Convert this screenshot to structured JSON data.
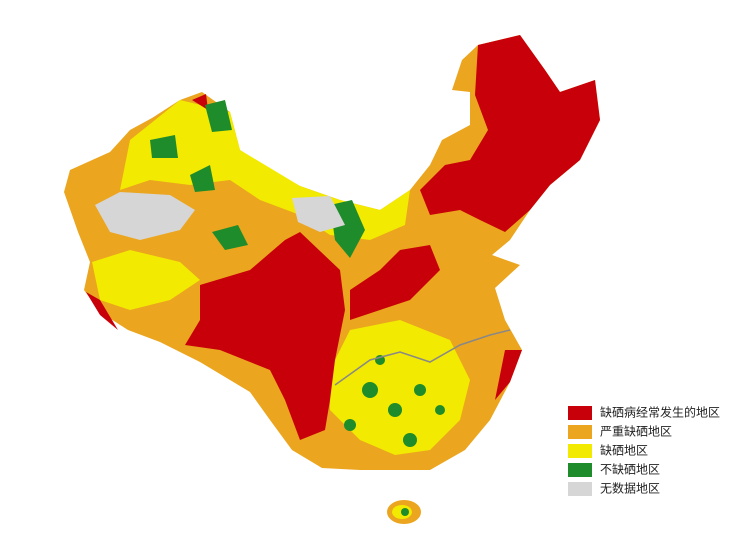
{
  "legend": [
    {
      "label": "缺硒病经常发生的地区",
      "color": "#c8000a"
    },
    {
      "label": "严重缺硒地区",
      "color": "#eba51e"
    },
    {
      "label": "缺硒地区",
      "color": "#f2ea00"
    },
    {
      "label": "不缺硒地区",
      "color": "#1e8c2a"
    },
    {
      "label": "无数据地区",
      "color": "#d6d6d6"
    }
  ]
}
